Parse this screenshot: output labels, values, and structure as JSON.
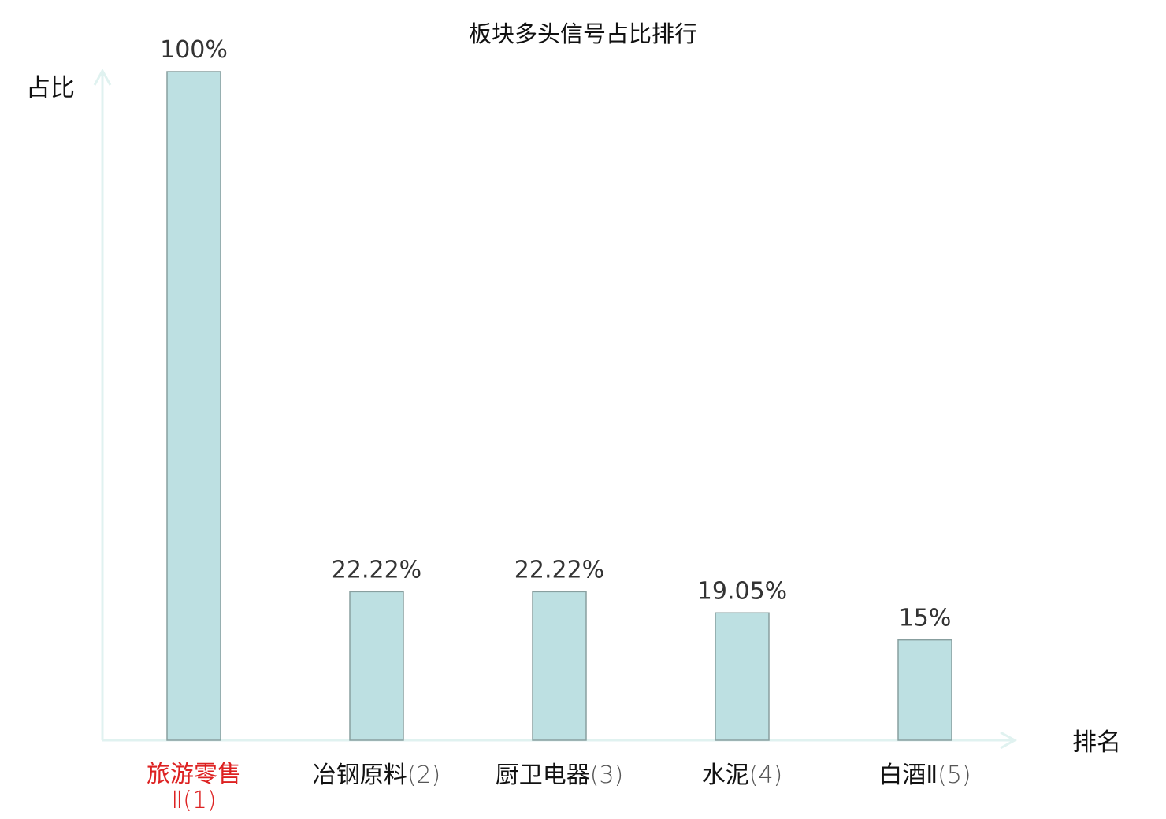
{
  "chart_data": {
    "type": "bar",
    "title": "板块多头信号占比排行",
    "xlabel": "排名",
    "ylabel": "占比",
    "ylim": [
      0,
      100
    ],
    "grid": false,
    "categories": [
      "旅游零售Ⅱ",
      "冶钢原料",
      "厨卫电器",
      "水泥",
      "白酒Ⅱ"
    ],
    "ranks": [
      "(1)",
      "(2)",
      "(3)",
      "(4)",
      "(5)"
    ],
    "values": [
      100,
      22.22,
      22.22,
      19.05,
      15
    ],
    "value_labels": [
      "100%",
      "22.22%",
      "22.22%",
      "19.05%",
      "15%"
    ],
    "highlight_index": 0,
    "colors": {
      "bar_fill": "#bde0e2",
      "bar_stroke": "#889f9f",
      "axis": "#e0f2f0",
      "highlight_text": "#dd2222",
      "text": "#111111",
      "rank_text": "#555555",
      "value_text": "#333333"
    }
  }
}
